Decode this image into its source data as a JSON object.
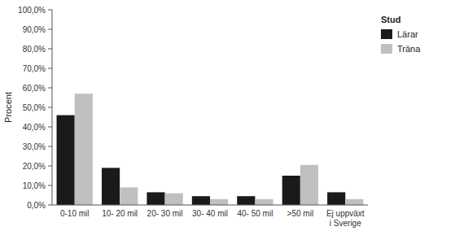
{
  "chart_data": {
    "type": "bar",
    "categories": [
      "0-10 mil",
      "10- 20 mil",
      "20- 30 mil",
      "30- 40 mil",
      "40- 50 mil",
      ">50 mil",
      "Ej uppväxt\ni Sverige"
    ],
    "series": [
      {
        "name": "Lärar",
        "color": "#1a1a1a",
        "values": [
          46.0,
          19.0,
          6.5,
          4.5,
          4.5,
          15.0,
          6.5
        ]
      },
      {
        "name": "Träna",
        "color": "#c0c0c0",
        "values": [
          57.0,
          9.0,
          6.0,
          3.0,
          3.0,
          20.5,
          3.0
        ]
      }
    ],
    "ylabel": "Procent",
    "ylim": [
      0,
      100
    ],
    "yticks": [
      {
        "value": 0,
        "label": "0,0%"
      },
      {
        "value": 10,
        "label": "10,0%"
      },
      {
        "value": 20,
        "label": "20,0%"
      },
      {
        "value": 30,
        "label": "30,0%"
      },
      {
        "value": 40,
        "label": "40,0%"
      },
      {
        "value": 50,
        "label": "50,0%"
      },
      {
        "value": 60,
        "label": "60,0%"
      },
      {
        "value": 70,
        "label": "70,0%"
      },
      {
        "value": 80,
        "label": "80,0%"
      },
      {
        "value": 90,
        "label": "90,0%"
      },
      {
        "value": 100,
        "label": "100,0%"
      }
    ],
    "legend": "right",
    "legend_title": "Stud",
    "grid": false
  }
}
